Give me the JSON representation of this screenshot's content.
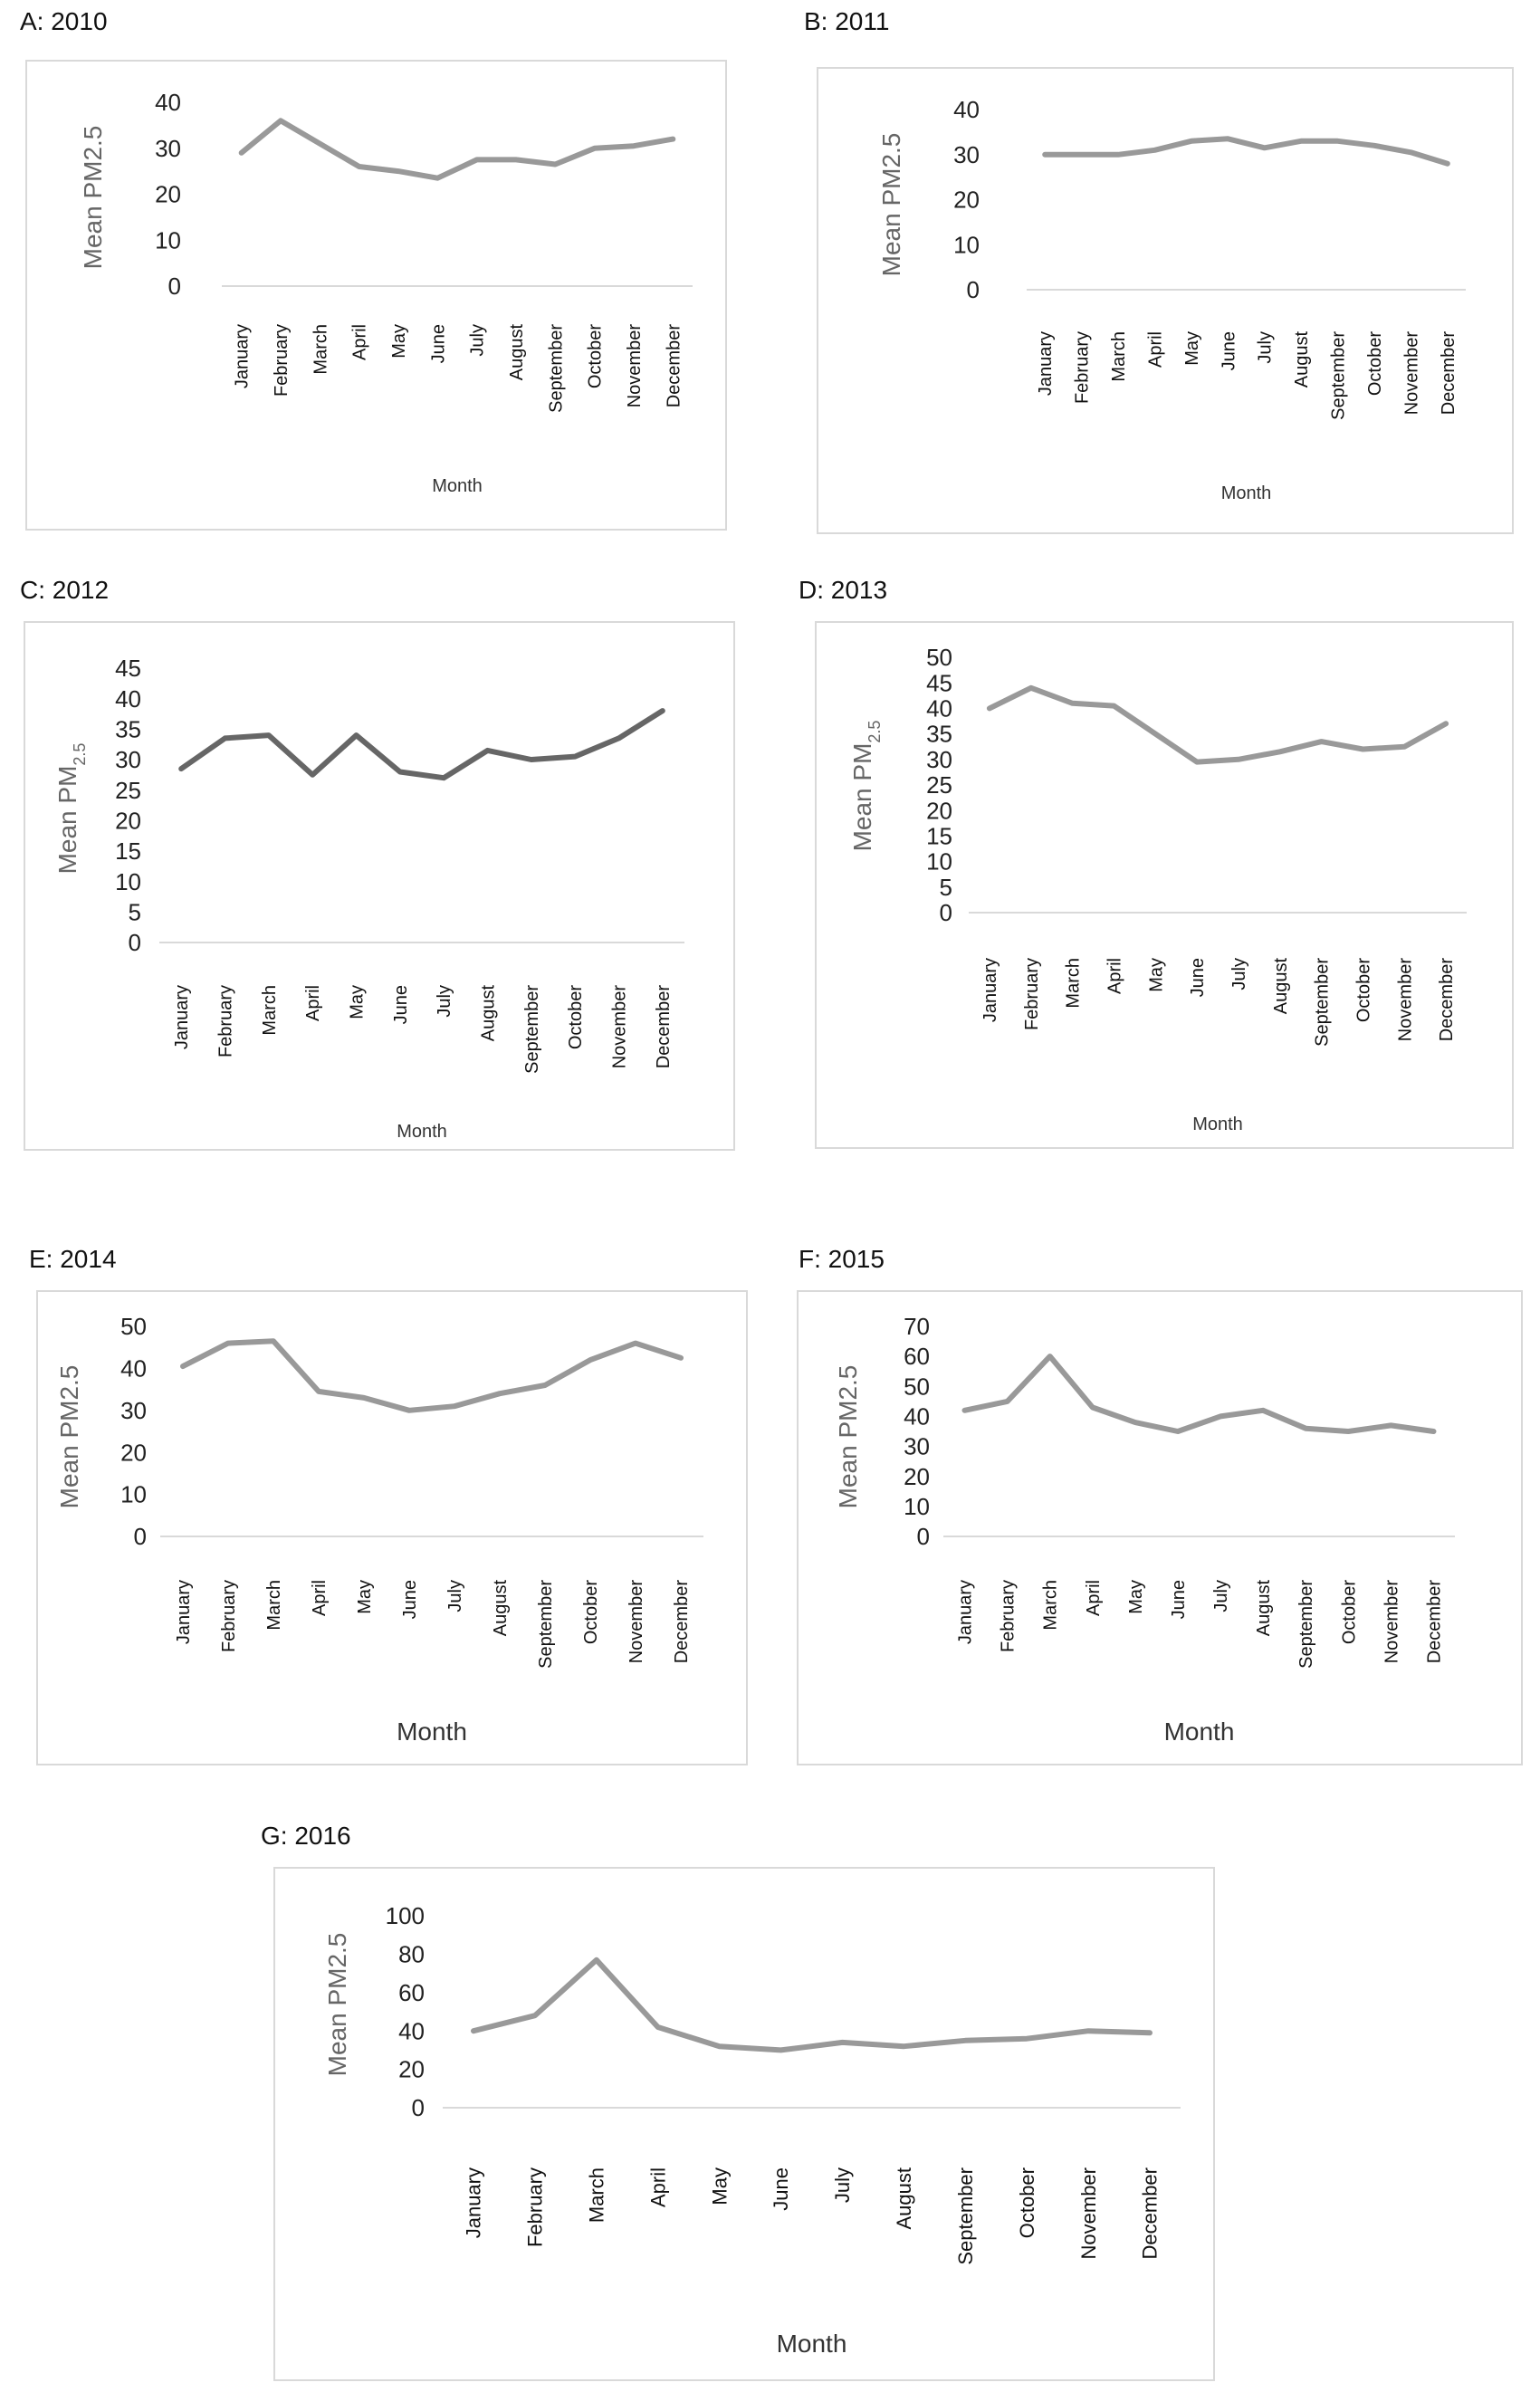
{
  "chart_data": [
    {
      "panel": "A: 2010",
      "type": "line",
      "ylabel": "Mean PM2.5",
      "ylabel_sub": "",
      "xlabel": "Month",
      "categories": [
        "January",
        "February",
        "March",
        "April",
        "May",
        "June",
        "July",
        "August",
        "September",
        "October",
        "November",
        "December"
      ],
      "yticks": [
        0,
        10,
        20,
        30,
        40
      ],
      "ylim": [
        0,
        40
      ],
      "series": [
        {
          "values": [
            29,
            36,
            31,
            26,
            25,
            23.5,
            27.5,
            27.5,
            26.5,
            30,
            30.5,
            32
          ]
        }
      ],
      "line_color": "#999999"
    },
    {
      "panel": "B: 2011",
      "type": "line",
      "ylabel": "Mean PM2.5",
      "ylabel_sub": "",
      "xlabel": "Month",
      "categories": [
        "January",
        "February",
        "March",
        "April",
        "May",
        "June",
        "July",
        "August",
        "September",
        "October",
        "November",
        "December"
      ],
      "yticks": [
        0,
        10,
        20,
        30,
        40
      ],
      "ylim": [
        0,
        40
      ],
      "series": [
        {
          "values": [
            30,
            30,
            30,
            31,
            33,
            33.5,
            31.5,
            33,
            33,
            32,
            30.5,
            28
          ]
        }
      ],
      "line_color": "#999999"
    },
    {
      "panel": "C: 2012",
      "type": "line",
      "ylabel": "Mean PM",
      "ylabel_sub": "2.5",
      "xlabel": "Month",
      "categories": [
        "January",
        "February",
        "March",
        "April",
        "May",
        "June",
        "July",
        "August",
        "September",
        "October",
        "November",
        "December"
      ],
      "yticks": [
        0,
        5,
        10,
        15,
        20,
        25,
        30,
        35,
        40,
        45
      ],
      "ylim": [
        0,
        45
      ],
      "series": [
        {
          "values": [
            28.5,
            33.5,
            34,
            27.5,
            34,
            28,
            27,
            31.5,
            30,
            30.5,
            33.5,
            38
          ]
        }
      ],
      "line_color": "#666666"
    },
    {
      "panel": "D: 2013",
      "type": "line",
      "ylabel": "Mean PM",
      "ylabel_sub": "2.5",
      "xlabel": "Month",
      "categories": [
        "January",
        "February",
        "March",
        "April",
        "May",
        "June",
        "July",
        "August",
        "September",
        "October",
        "November",
        "December"
      ],
      "yticks": [
        0,
        5,
        10,
        15,
        20,
        25,
        30,
        35,
        40,
        45,
        50
      ],
      "ylim": [
        0,
        50
      ],
      "series": [
        {
          "values": [
            40,
            44,
            41,
            40.5,
            35,
            29.5,
            30,
            31.5,
            33.5,
            32,
            32.5,
            37
          ]
        }
      ],
      "line_color": "#999999"
    },
    {
      "panel": "E: 2014",
      "type": "line",
      "ylabel": "Mean PM2.5",
      "ylabel_sub": "",
      "xlabel": "Month",
      "categories": [
        "January",
        "February",
        "March",
        "April",
        "May",
        "June",
        "July",
        "August",
        "September",
        "October",
        "November",
        "December"
      ],
      "yticks": [
        0,
        10,
        20,
        30,
        40,
        50
      ],
      "ylim": [
        0,
        50
      ],
      "series": [
        {
          "values": [
            40.5,
            46,
            46.5,
            34.5,
            33,
            30,
            31,
            34,
            36,
            42,
            46,
            42.5
          ]
        }
      ],
      "line_color": "#999999"
    },
    {
      "panel": "F: 2015",
      "type": "line",
      "ylabel": "Mean PM2.5",
      "ylabel_sub": "",
      "xlabel": "Month",
      "categories": [
        "January",
        "February",
        "March",
        "April",
        "May",
        "June",
        "July",
        "August",
        "September",
        "October",
        "November",
        "December"
      ],
      "yticks": [
        0,
        10,
        20,
        30,
        40,
        50,
        60,
        70
      ],
      "ylim": [
        0,
        70
      ],
      "series": [
        {
          "values": [
            42,
            45,
            60,
            43,
            38,
            35,
            40,
            42,
            36,
            35,
            37,
            35
          ]
        }
      ],
      "line_color": "#999999"
    },
    {
      "panel": "G: 2016",
      "type": "line",
      "ylabel": "Mean PM2.5",
      "ylabel_sub": "",
      "xlabel": "Month",
      "categories": [
        "January",
        "February",
        "March",
        "April",
        "May",
        "June",
        "July",
        "August",
        "September",
        "October",
        "November",
        "December"
      ],
      "yticks": [
        0,
        20,
        40,
        60,
        80,
        100
      ],
      "ylim": [
        0,
        100
      ],
      "series": [
        {
          "values": [
            40,
            48,
            77,
            42,
            32,
            30,
            34,
            32,
            35,
            36,
            40,
            39
          ]
        }
      ],
      "line_color": "#999999"
    }
  ]
}
